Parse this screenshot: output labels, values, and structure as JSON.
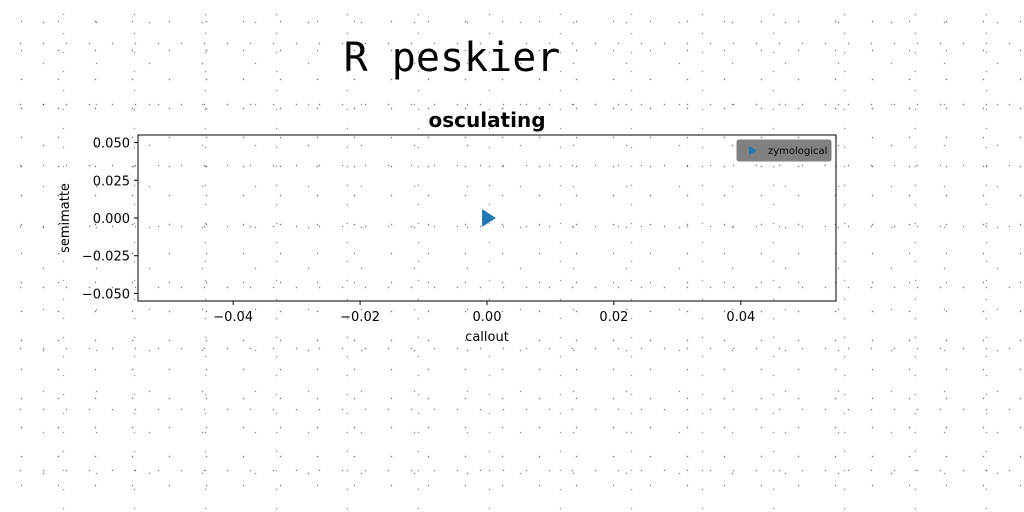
{
  "figure": {
    "suptitle": "R peskier"
  },
  "chart_data": {
    "type": "scatter",
    "title": "osculating",
    "xlabel": "callout",
    "ylabel": "semimatte",
    "xlim": [
      -0.055,
      0.055
    ],
    "ylim": [
      -0.055,
      0.055
    ],
    "x_ticks": [
      -0.04,
      -0.02,
      0.0,
      0.02,
      0.04
    ],
    "x_tick_labels": [
      "−0.04",
      "−0.02",
      "0.00",
      "0.02",
      "0.04"
    ],
    "y_ticks": [
      0.05,
      0.025,
      0.0,
      -0.025,
      -0.05
    ],
    "y_tick_labels": [
      "0.050",
      "0.025",
      "0.000",
      "−0.025",
      "−0.050"
    ],
    "grid": false,
    "legend_position": "top-right",
    "series": [
      {
        "name": "zymological",
        "marker": "triangle-right",
        "color": "#1f77b4",
        "points": [
          {
            "x": 0.0,
            "y": 0.0
          }
        ]
      }
    ]
  }
}
